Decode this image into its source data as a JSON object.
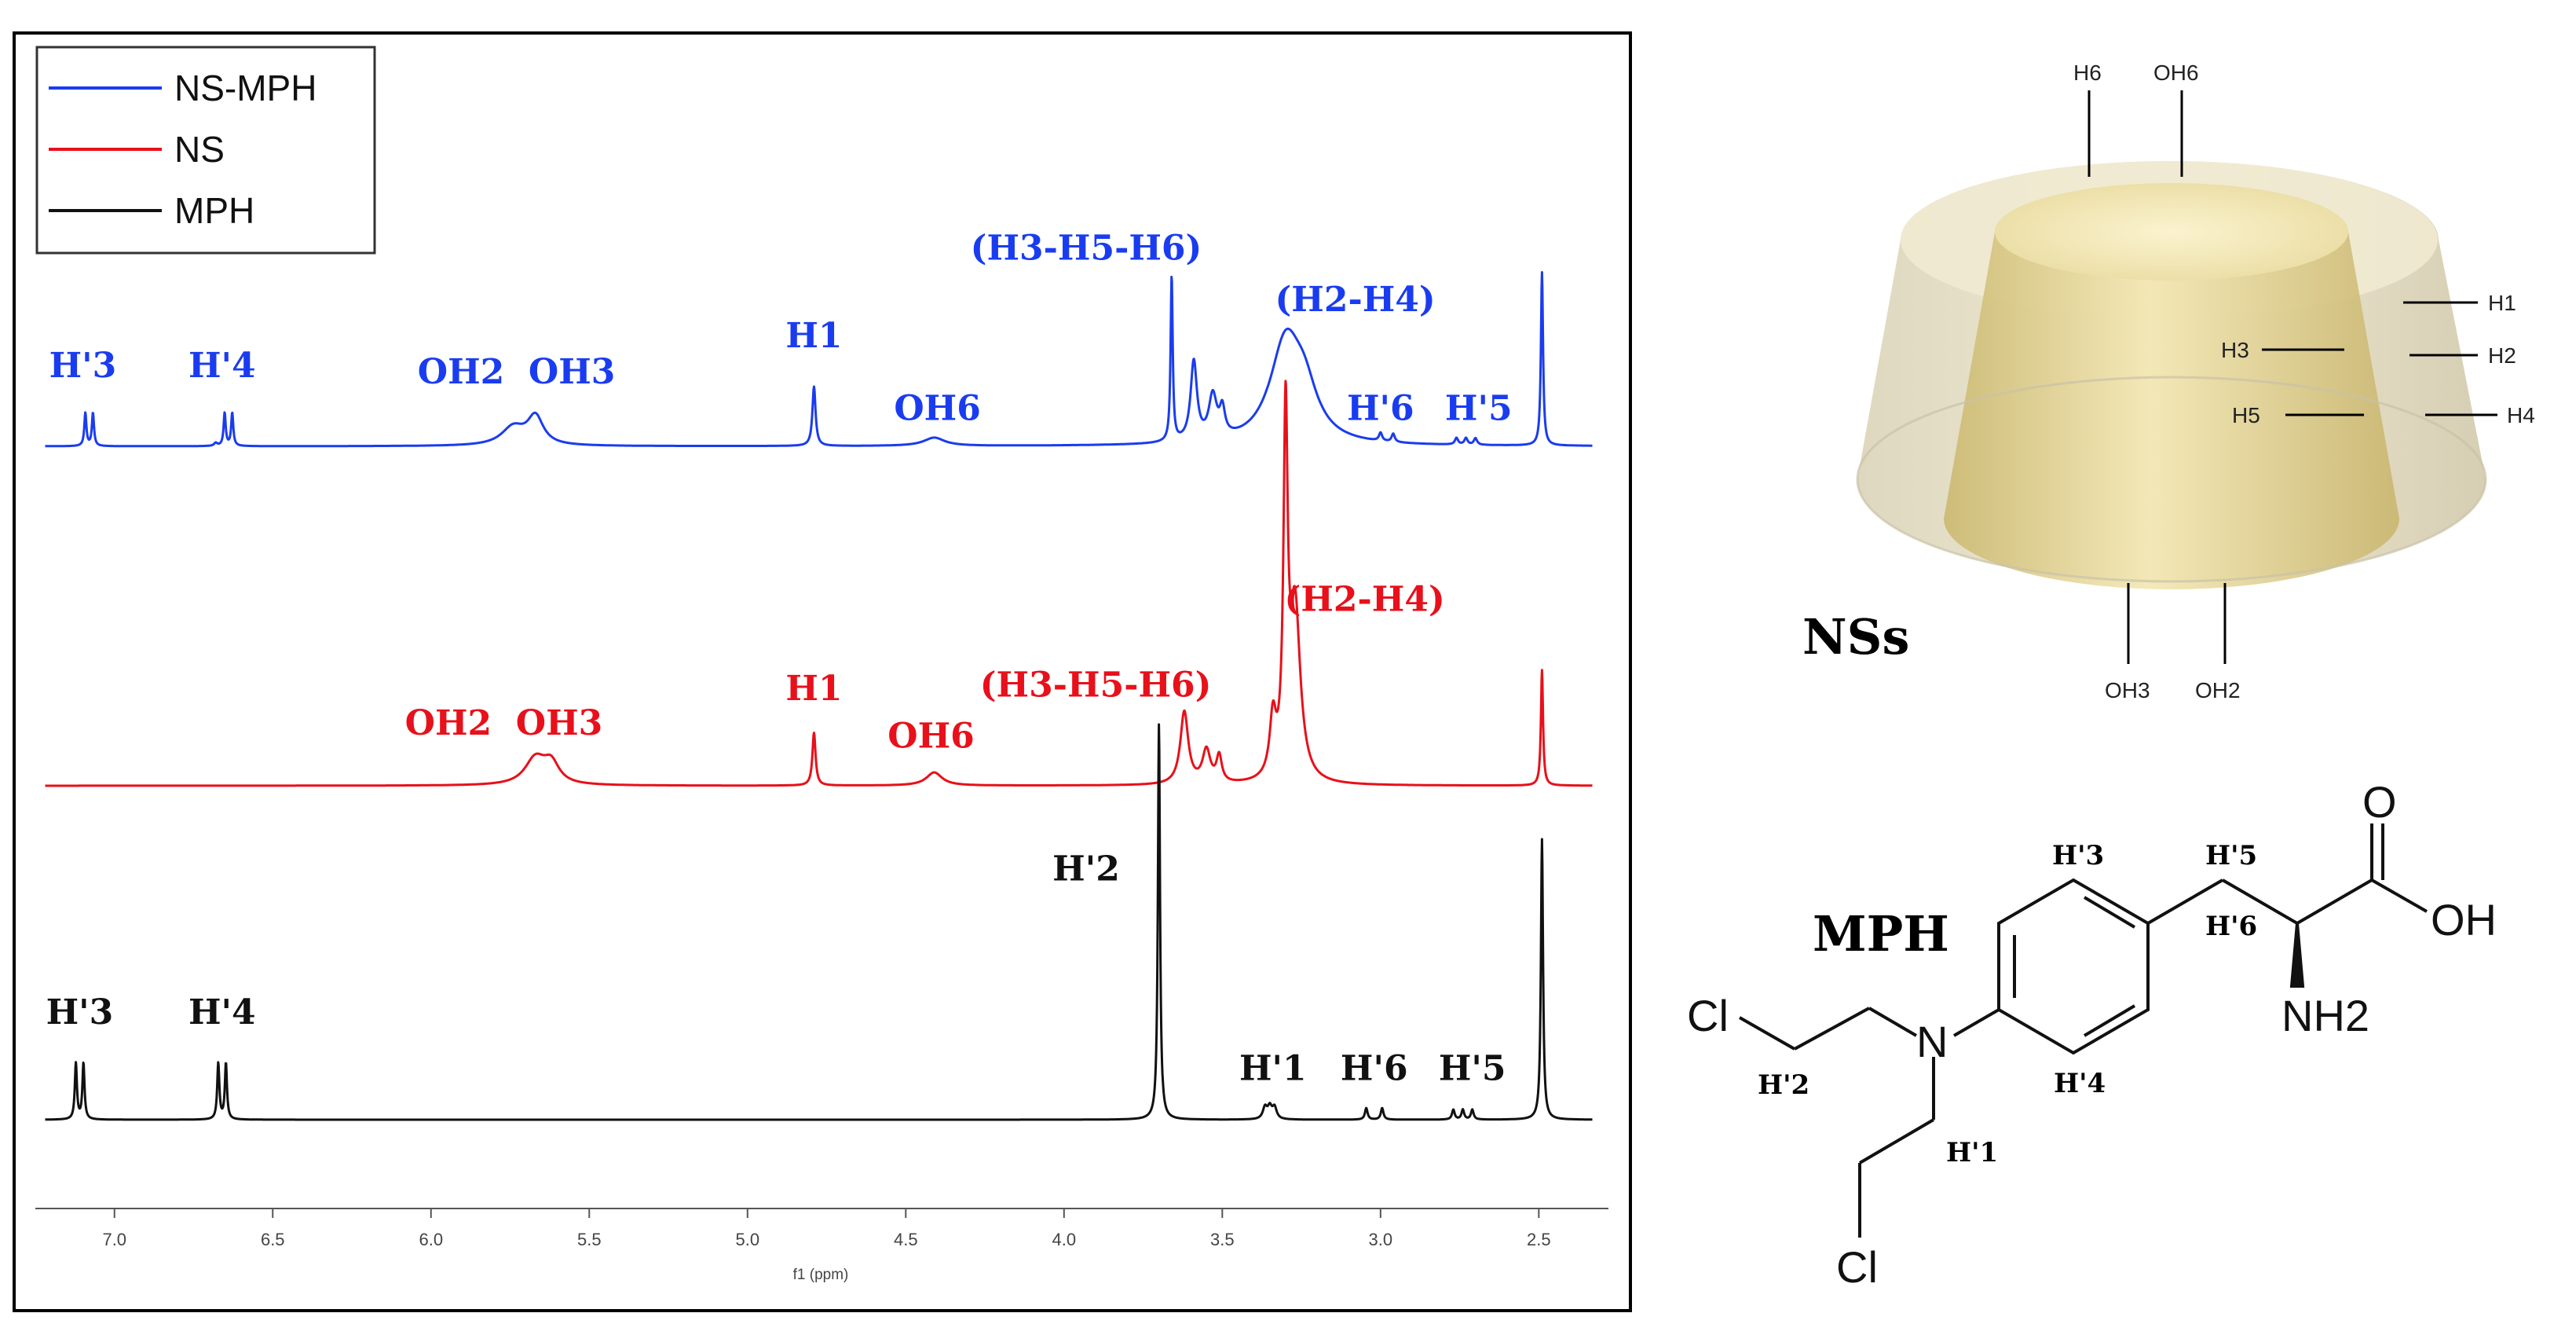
{
  "chart_data": {
    "type": "line",
    "xlabel": "f1 (ppm)",
    "xlim": [
      7.25,
      2.28
    ],
    "x_ticks": [
      "7.0",
      "6.5",
      "6.0",
      "5.5",
      "5.0",
      "4.5",
      "4.0",
      "3.5",
      "3.0",
      "2.5"
    ],
    "x_tick_values": [
      7.0,
      6.5,
      6.0,
      5.5,
      5.0,
      4.5,
      4.0,
      3.5,
      3.0,
      2.5
    ],
    "legend": {
      "placement": "top-left",
      "entries": [
        {
          "name": "NS-MPH",
          "color": "#1a3cf0"
        },
        {
          "name": "NS",
          "color": "#e8101a"
        },
        {
          "name": "MPH",
          "color": "#111111"
        }
      ]
    },
    "series": [
      {
        "name": "NS-MPH",
        "color": "#1a3cf0",
        "peaks": [
          {
            "ppm": 7.08,
            "h": 0.2,
            "w": 0.004,
            "multiplet": [
              -0.012,
              0.012
            ]
          },
          {
            "ppm": 6.68,
            "h": 0.018,
            "w": 0.006
          },
          {
            "ppm": 6.64,
            "h": 0.2,
            "w": 0.004,
            "multiplet": [
              -0.012,
              0.012
            ]
          },
          {
            "ppm": 5.74,
            "h": 0.11,
            "w": 0.045
          },
          {
            "ppm": 5.67,
            "h": 0.17,
            "w": 0.03
          },
          {
            "ppm": 4.79,
            "h": 0.36,
            "w": 0.006
          },
          {
            "ppm": 4.41,
            "h": 0.05,
            "w": 0.04
          },
          {
            "ppm": 3.66,
            "h": 1.0,
            "w": 0.004
          },
          {
            "ppm": 3.59,
            "h": 0.48,
            "w": 0.012
          },
          {
            "ppm": 3.53,
            "h": 0.26,
            "w": 0.015
          },
          {
            "ppm": 3.5,
            "h": 0.16,
            "w": 0.01
          },
          {
            "ppm": 3.3,
            "h": 0.6,
            "w": 0.06
          },
          {
            "ppm": 3.24,
            "h": 0.25,
            "w": 0.05
          },
          {
            "ppm": 2.98,
            "h": 0.05,
            "w": 0.006,
            "multiplet": [
              -0.02,
              0.02
            ]
          },
          {
            "ppm": 2.73,
            "h": 0.04,
            "w": 0.006,
            "multiplet": [
              -0.03,
              0,
              0.03
            ]
          },
          {
            "ppm": 2.49,
            "h": 1.05,
            "w": 0.004
          }
        ],
        "labels": [
          {
            "text": "H'3",
            "ppm": 7.1,
            "level": 0.42
          },
          {
            "text": "H'4",
            "ppm": 6.66,
            "level": 0.42
          },
          {
            "text": "OH2  OH3",
            "ppm": 5.73,
            "level": 0.38
          },
          {
            "text": "H1",
            "ppm": 4.79,
            "level": 0.6
          },
          {
            "text": "OH6",
            "ppm": 4.4,
            "level": 0.16
          },
          {
            "text": "(H3-H5-H6)",
            "ppm": 3.93,
            "level": 1.13
          },
          {
            "text": "(H2-H4)",
            "ppm": 3.08,
            "level": 0.82
          },
          {
            "text": "H'6",
            "ppm": 3.0,
            "level": 0.16
          },
          {
            "text": "H'5",
            "ppm": 2.69,
            "level": 0.16
          }
        ]
      },
      {
        "name": "NS",
        "color": "#e8101a",
        "peaks": [
          {
            "ppm": 5.67,
            "h": 0.16,
            "w": 0.04
          },
          {
            "ppm": 5.62,
            "h": 0.12,
            "w": 0.03
          },
          {
            "ppm": 4.79,
            "h": 0.32,
            "w": 0.006
          },
          {
            "ppm": 4.41,
            "h": 0.08,
            "w": 0.03
          },
          {
            "ppm": 3.62,
            "h": 0.44,
            "w": 0.015
          },
          {
            "ppm": 3.55,
            "h": 0.2,
            "w": 0.015
          },
          {
            "ppm": 3.51,
            "h": 0.16,
            "w": 0.01
          },
          {
            "ppm": 3.34,
            "h": 0.35,
            "w": 0.012
          },
          {
            "ppm": 3.3,
            "h": 2.1,
            "w": 0.008
          },
          {
            "ppm": 3.27,
            "h": 1.05,
            "w": 0.02
          },
          {
            "ppm": 2.49,
            "h": 0.7,
            "w": 0.004
          }
        ],
        "labels": [
          {
            "text": "OH2  OH3",
            "ppm": 5.77,
            "level": 0.31
          },
          {
            "text": "H1",
            "ppm": 4.79,
            "level": 0.52
          },
          {
            "text": "OH6",
            "ppm": 4.42,
            "level": 0.23
          },
          {
            "text": "(H3-H5-H6)",
            "ppm": 3.9,
            "level": 0.54
          },
          {
            "text": "(H2-H4)",
            "ppm": 3.05,
            "level": 1.06
          }
        ]
      },
      {
        "name": "MPH",
        "color": "#111111",
        "peaks": [
          {
            "ppm": 7.11,
            "h": 0.34,
            "w": 0.004,
            "multiplet": [
              -0.012,
              0.012
            ]
          },
          {
            "ppm": 6.66,
            "h": 0.34,
            "w": 0.004,
            "multiplet": [
              -0.012,
              0.012
            ]
          },
          {
            "ppm": 3.7,
            "h": 2.4,
            "w": 0.004
          },
          {
            "ppm": 3.35,
            "h": 0.07,
            "w": 0.008,
            "multiplet": [
              -0.015,
              0,
              0.015
            ]
          },
          {
            "ppm": 3.02,
            "h": 0.07,
            "w": 0.005,
            "multiplet": [
              -0.025,
              0.025
            ]
          },
          {
            "ppm": 2.74,
            "h": 0.06,
            "w": 0.005,
            "multiplet": [
              -0.03,
              0,
              0.03
            ]
          },
          {
            "ppm": 2.49,
            "h": 1.7,
            "w": 0.004
          }
        ],
        "labels": [
          {
            "text": "H'3",
            "ppm": 7.11,
            "level": 0.58
          },
          {
            "text": "H'4",
            "ppm": 6.66,
            "level": 0.58
          },
          {
            "text": "H'2",
            "ppm": 3.93,
            "level": 1.45
          },
          {
            "text": "H'1",
            "ppm": 3.34,
            "level": 0.24
          },
          {
            "text": "H'6",
            "ppm": 3.02,
            "level": 0.24
          },
          {
            "text": "H'5",
            "ppm": 2.71,
            "level": 0.24
          }
        ]
      }
    ]
  },
  "figure": {
    "ns_label": "NSs",
    "mph_label": "MPH",
    "ns_diagram": {
      "top": [
        "H6",
        "OH6"
      ],
      "right": [
        "H1",
        "H3",
        "H2",
        "H5",
        "H4"
      ],
      "bottom": [
        "OH3",
        "OH2"
      ]
    },
    "mph_structure": {
      "atoms": [
        "Cl",
        "N",
        "Cl",
        "O",
        "OH",
        "NH2"
      ],
      "h_labels": [
        "H'3",
        "H'5",
        "H'6",
        "H'4",
        "H'2",
        "H'1"
      ]
    }
  }
}
